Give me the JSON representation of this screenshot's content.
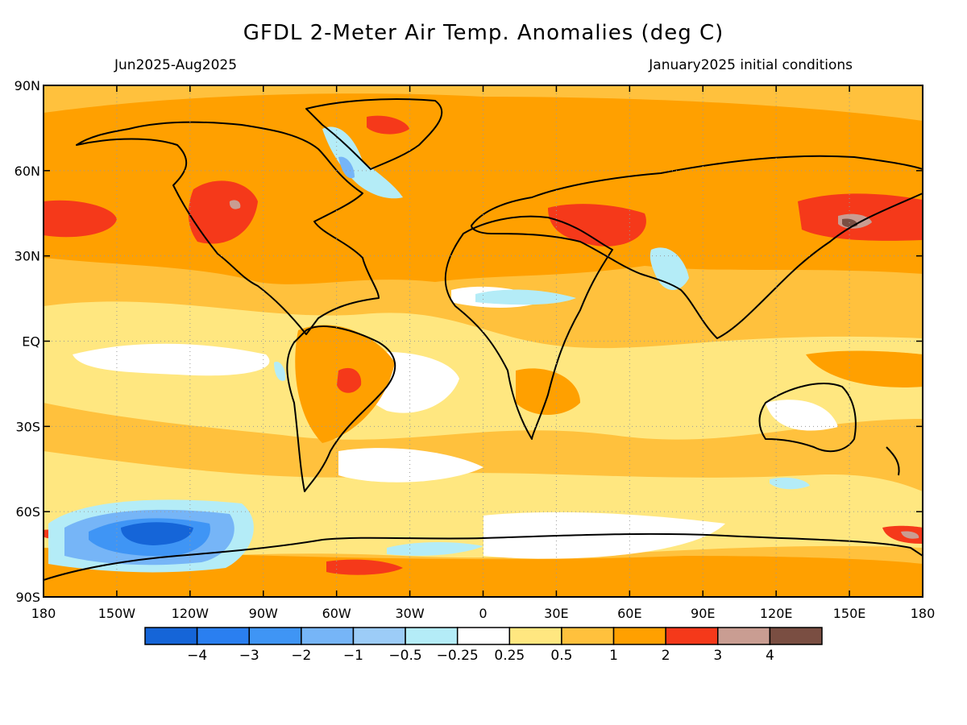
{
  "header": {
    "title": "GFDL 2-Meter Air Temp. Anomalies (deg C)",
    "period": "Jun2025-Aug2025",
    "init": "January2025 initial conditions"
  },
  "axes": {
    "lat_labels": [
      "90N",
      "60N",
      "30N",
      "EQ",
      "30S",
      "60S",
      "90S"
    ],
    "lon_labels": [
      "180",
      "150W",
      "120W",
      "90W",
      "60W",
      "30W",
      "0",
      "30E",
      "60E",
      "90E",
      "120E",
      "150E",
      "180"
    ]
  },
  "colorbar": {
    "colors": [
      "#1565d8",
      "#2a7ff0",
      "#3f95f5",
      "#76b5f7",
      "#9cccf7",
      "#b4ecf7",
      "#ffffff",
      "#ffe780",
      "#ffc13d",
      "#ffa000",
      "#f5391a",
      "#c99d92",
      "#7a4e42"
    ],
    "labels": [
      "-4",
      "-3",
      "-2",
      "-1",
      "-0.5",
      "-0.25",
      "0.25",
      "0.5",
      "1",
      "2",
      "3",
      "4"
    ]
  }
}
